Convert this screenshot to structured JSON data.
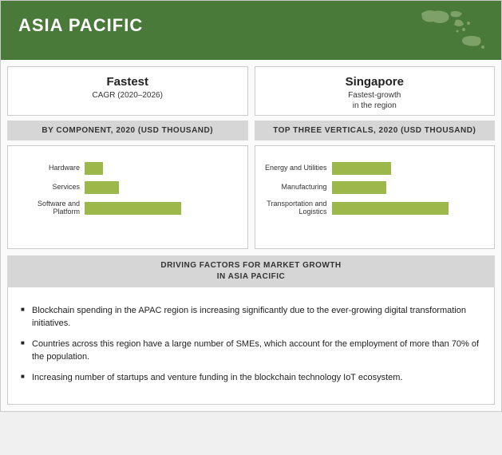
{
  "header": {
    "title": "ASIA PACIFIC",
    "bg_color": "#4a7a3a",
    "map_fill": "#a9c28e"
  },
  "top_cards": [
    {
      "big": "Fastest",
      "sub": "CAGR (2020–2026)"
    },
    {
      "big": "Singapore",
      "sub": "Fastest-growth\nin the region"
    }
  ],
  "bands": [
    "BY COMPONENT,  2020 (USD THOUSAND)",
    "TOP THREE VERTICALS, 2020 (USD THOUSAND)"
  ],
  "charts": [
    {
      "type": "bar-horizontal",
      "bar_color": "#9cb84a",
      "max": 100,
      "items": [
        {
          "label": "Hardware",
          "value": 12
        },
        {
          "label": "Services",
          "value": 22
        },
        {
          "label": "Software and Platform",
          "value": 62
        }
      ]
    },
    {
      "type": "bar-horizontal",
      "bar_color": "#9cb84a",
      "max": 100,
      "items": [
        {
          "label": "Energy and Utilities",
          "value": 38
        },
        {
          "label": "Manufacturing",
          "value": 35
        },
        {
          "label": "Transportation and Logistics",
          "value": 75
        }
      ]
    }
  ],
  "drivers": {
    "title_line1": "DRIVING FACTORS FOR MARKET GROWTH",
    "title_line2": "IN ASIA PACIFIC",
    "items": [
      "Blockchain spending in the APAC region is increasing significantly due to the ever-growing digital transformation initiatives.",
      "Countries across this region have  a large number of SMEs, which account for the employment of more than 70% of the population.",
      "Increasing number of startups and venture funding in the blockchain technology IoT ecosystem."
    ]
  },
  "style": {
    "band_bg": "#d6d6d6",
    "card_border": "#cccccc",
    "body_bg": "#fafafa",
    "text_color": "#222222",
    "label_fontsize": 9,
    "band_fontsize": 10,
    "big_fontsize": 15,
    "sub_fontsize": 10,
    "driver_fontsize": 11
  }
}
